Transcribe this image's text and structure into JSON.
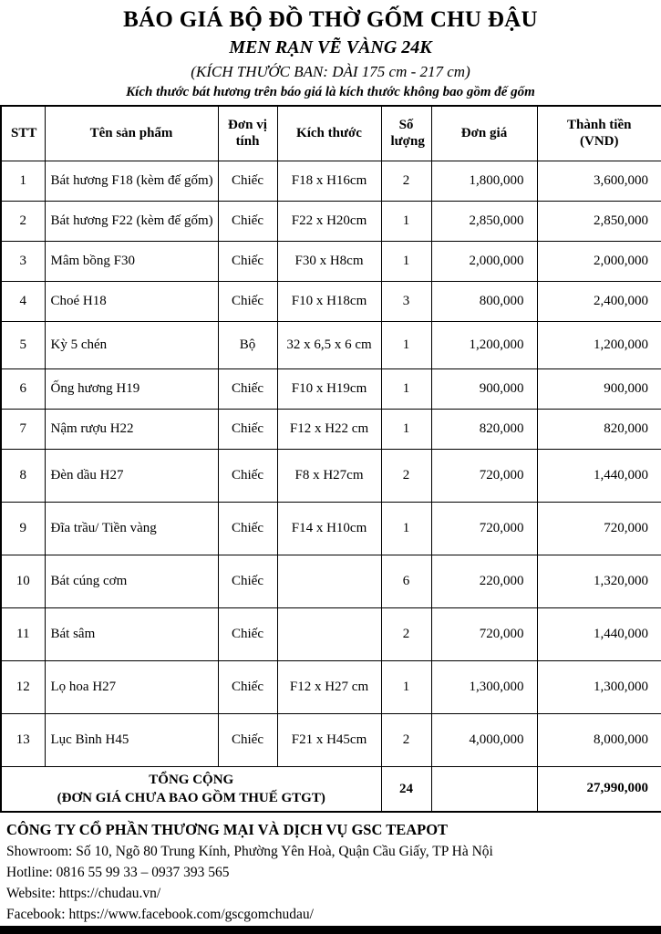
{
  "header": {
    "title": "BÁO GIÁ BỘ ĐỒ THỜ GỐM CHU ĐẬU",
    "subtitle": "MEN RẠN VẼ VÀNG 24K",
    "size_note": "(KÍCH THƯỚC BAN: DÀI 175 cm - 217 cm)",
    "disclaimer": "Kích thước bát hương trên báo giá là kích thước không bao gồm đế gốm"
  },
  "table": {
    "columns": [
      "STT",
      "Tên sản phẩm",
      "Đơn vị tính",
      "Kích thước",
      "Số lượng",
      "Đơn giá",
      "Thành tiền (VND)"
    ],
    "rows": [
      {
        "stt": "1",
        "name": "Bát hương F18 (kèm đế gốm)",
        "unit": "Chiếc",
        "size": "F18 x H16cm",
        "qty": "2",
        "unit_price": "1,800,000",
        "total": "3,600,000"
      },
      {
        "stt": "2",
        "name": "Bát hương F22 (kèm đế gốm)",
        "unit": "Chiếc",
        "size": "F22 x H20cm",
        "qty": "1",
        "unit_price": "2,850,000",
        "total": "2,850,000"
      },
      {
        "stt": "3",
        "name": "Mâm bồng F30",
        "unit": "Chiếc",
        "size": "F30 x H8cm",
        "qty": "1",
        "unit_price": "2,000,000",
        "total": "2,000,000"
      },
      {
        "stt": "4",
        "name": "Choé H18",
        "unit": "Chiếc",
        "size": "F10 x H18cm",
        "qty": "3",
        "unit_price": "800,000",
        "total": "2,400,000"
      },
      {
        "stt": "5",
        "name": "Kỳ 5 chén",
        "unit": "Bộ",
        "size": "32 x 6,5 x 6 cm",
        "qty": "1",
        "unit_price": "1,200,000",
        "total": "1,200,000"
      },
      {
        "stt": "6",
        "name": "Ống hương H19",
        "unit": "Chiếc",
        "size": "F10 x H19cm",
        "qty": "1",
        "unit_price": "900,000",
        "total": "900,000"
      },
      {
        "stt": "7",
        "name": "Nậm rượu H22",
        "unit": "Chiếc",
        "size": "F12 x H22 cm",
        "qty": "1",
        "unit_price": "820,000",
        "total": "820,000"
      },
      {
        "stt": "8",
        "name": "Đèn dầu H27",
        "unit": "Chiếc",
        "size": "F8 x H27cm",
        "qty": "2",
        "unit_price": "720,000",
        "total": "1,440,000"
      },
      {
        "stt": "9",
        "name": "Đĩa trầu/ Tiền vàng",
        "unit": "Chiếc",
        "size": "F14 x H10cm",
        "qty": "1",
        "unit_price": "720,000",
        "total": "720,000"
      },
      {
        "stt": "10",
        "name": "Bát cúng cơm",
        "unit": "Chiếc",
        "size": "",
        "qty": "6",
        "unit_price": "220,000",
        "total": "1,320,000"
      },
      {
        "stt": "11",
        "name": "Bát sâm",
        "unit": "Chiếc",
        "size": "",
        "qty": "2",
        "unit_price": "720,000",
        "total": "1,440,000"
      },
      {
        "stt": "12",
        "name": "Lọ hoa H27",
        "unit": "Chiếc",
        "size": "F12 x H27 cm",
        "qty": "1",
        "unit_price": "1,300,000",
        "total": "1,300,000"
      },
      {
        "stt": "13",
        "name": "Lục Bình H45",
        "unit": "Chiếc",
        "size": "F21 x H45cm",
        "qty": "2",
        "unit_price": "4,000,000",
        "total": "8,000,000"
      }
    ],
    "total_row": {
      "label_line1": "TỔNG CỘNG",
      "label_line2": "(ĐƠN GIÁ CHƯA BAO GỒM THUẾ GTGT)",
      "qty": "24",
      "unit_price": "",
      "total": "27,990,000"
    }
  },
  "footer": {
    "company": "CÔNG TY CỔ PHẦN THƯƠNG MẠI VÀ DỊCH VỤ GSC TEAPOT",
    "lines": [
      "Showroom: Số 10, Ngõ 80 Trung Kính, Phường Yên Hoà, Quận Cầu Giấy, TP Hà Nội",
      "Hotline: 0816 55 99 33 – 0937 393 565",
      "Website: https://chudau.vn/",
      "Facebook: https://www.facebook.com/gscgomchudau/"
    ]
  },
  "colors": {
    "text": "#000000",
    "background": "#ffffff",
    "border": "#000000"
  }
}
